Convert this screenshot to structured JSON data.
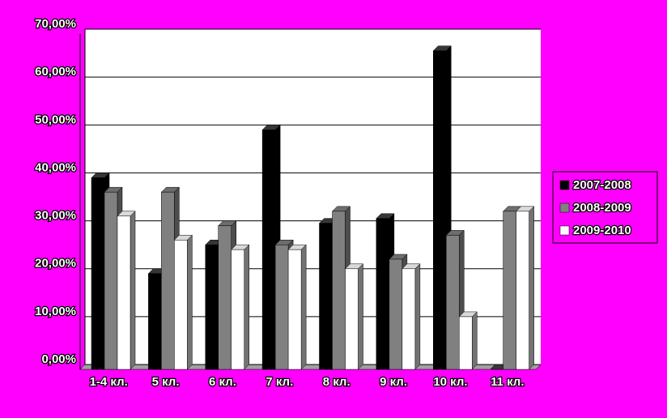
{
  "chart_data": {
    "type": "bar",
    "categories": [
      "1-4 кл.",
      "5 кл.",
      "6 кл.",
      "7 кл.",
      "8 кл.",
      "9 кл.",
      "10 кл.",
      "11 кл."
    ],
    "series": [
      {
        "name": "2007-2008",
        "color": "#000000",
        "values": [
          40,
          20,
          26,
          50,
          30.5,
          31.5,
          66.5,
          0
        ]
      },
      {
        "name": "2008-2009",
        "color": "#808080",
        "values": [
          37,
          37,
          30,
          26,
          33,
          23,
          28,
          33
        ]
      },
      {
        "name": "2009-2010",
        "color": "#ffffff",
        "values": [
          32,
          27,
          25,
          25,
          21,
          21,
          11,
          33
        ]
      }
    ],
    "ylim": [
      0,
      70
    ],
    "yticks": [
      {
        "value": 0,
        "label": "0,00%"
      },
      {
        "value": 10,
        "label": "10,00%"
      },
      {
        "value": 20,
        "label": "20,00%"
      },
      {
        "value": 30,
        "label": "30,00%"
      },
      {
        "value": 40,
        "label": "40,00%"
      },
      {
        "value": 50,
        "label": "50,00%"
      },
      {
        "value": 60,
        "label": "60,00%"
      },
      {
        "value": 70,
        "label": "70,00%"
      }
    ],
    "grid": true,
    "legend": "right"
  }
}
